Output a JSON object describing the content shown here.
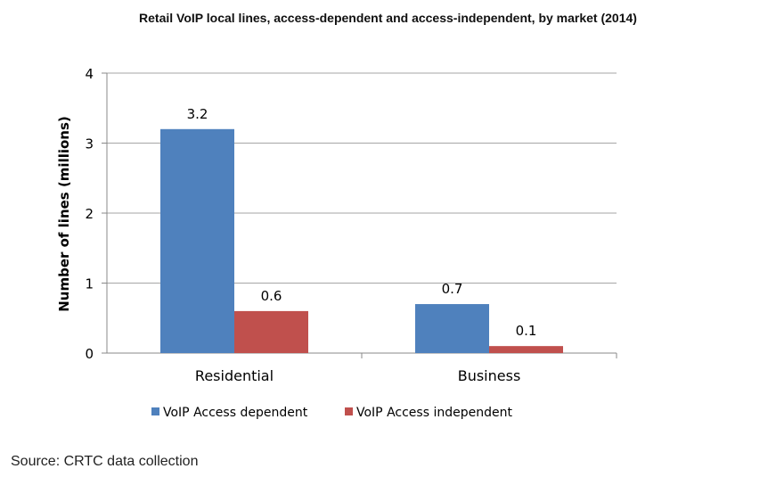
{
  "chart_data": {
    "type": "bar",
    "title": "Retail VoIP local lines, access-dependent and access-independent, by market (2014)",
    "ylabel": "Number of lines (millions)",
    "xlabel": "",
    "categories": [
      "Residential",
      "Business"
    ],
    "series": [
      {
        "name": "VoIP Access dependent",
        "values": [
          3.2,
          0.7
        ],
        "labels": [
          "3.2",
          "0.7"
        ],
        "color": "#4F81BD"
      },
      {
        "name": "VoIP Access independent",
        "values": [
          0.6,
          0.1
        ],
        "labels": [
          "0.6",
          "0.1"
        ],
        "color": "#C0504D"
      }
    ],
    "ylim": [
      0,
      4
    ],
    "yticks": [
      0,
      1,
      2,
      3,
      4
    ],
    "grid": true,
    "legend": "bottom"
  },
  "source": "Source: CRTC data collection"
}
